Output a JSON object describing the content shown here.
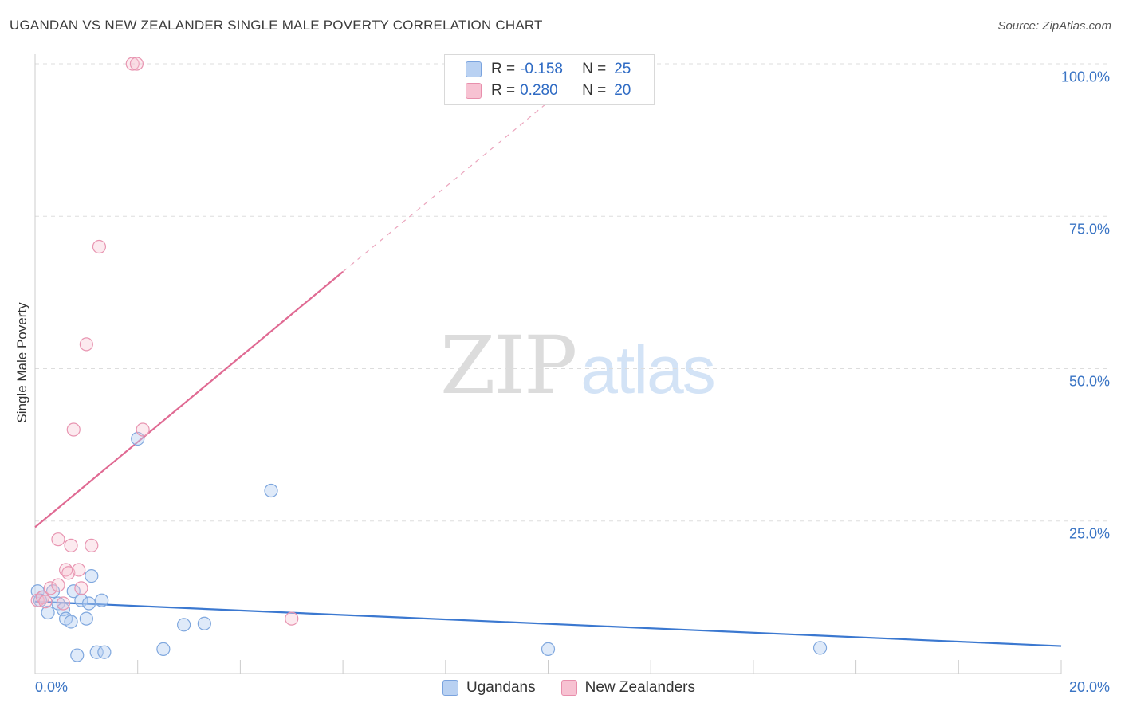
{
  "title": "UGANDAN VS NEW ZEALANDER SINGLE MALE POVERTY CORRELATION CHART",
  "source": "Source: ZipAtlas.com",
  "watermark": {
    "zip": "ZIP",
    "atlas": "atlas"
  },
  "legend_top": {
    "rows": [
      {
        "r_label": "R =",
        "r_value": "-0.158",
        "n_label": "N =",
        "n_value": "25"
      },
      {
        "r_label": "R =",
        "r_value": "0.280",
        "n_label": "N =",
        "n_value": "20"
      }
    ]
  },
  "legend_bottom": {
    "series_0": "Ugandans",
    "series_1": "New Zealanders"
  },
  "chart_data": {
    "type": "scatter",
    "title": "UGANDAN VS NEW ZEALANDER SINGLE MALE POVERTY CORRELATION CHART",
    "xlabel": "",
    "ylabel": "Single Male Poverty",
    "xlim": [
      0,
      20
    ],
    "ylim": [
      0,
      100
    ],
    "x_tick_labels": {
      "left": "0.0%",
      "right": "20.0%"
    },
    "y_tick_labels": [
      "100.0%",
      "75.0%",
      "50.0%",
      "25.0%"
    ],
    "colors": {
      "Ugandans": "#3b78d0",
      "New Zealanders": "#e06a93"
    },
    "series": [
      {
        "name": "Ugandans",
        "points": [
          [
            0.05,
            13.5
          ],
          [
            0.15,
            12.5
          ],
          [
            0.25,
            10.0
          ],
          [
            0.35,
            13.5
          ],
          [
            0.45,
            11.5
          ],
          [
            0.55,
            10.5
          ],
          [
            0.6,
            9.0
          ],
          [
            0.7,
            8.5
          ],
          [
            0.75,
            13.5
          ],
          [
            0.82,
            3.0
          ],
          [
            0.9,
            12.0
          ],
          [
            1.0,
            9.0
          ],
          [
            1.05,
            11.5
          ],
          [
            1.1,
            16.0
          ],
          [
            1.2,
            3.5
          ],
          [
            1.3,
            12.0
          ],
          [
            1.35,
            3.5
          ],
          [
            2.0,
            38.5
          ],
          [
            2.5,
            4.0
          ],
          [
            2.9,
            8.0
          ],
          [
            3.3,
            8.2
          ],
          [
            4.6,
            30.0
          ],
          [
            10.0,
            4.0
          ],
          [
            15.3,
            4.2
          ],
          [
            0.1,
            12.0
          ]
        ],
        "trend": {
          "x": [
            0,
            20
          ],
          "y": [
            11.8,
            4.5
          ]
        }
      },
      {
        "name": "New Zealanders",
        "points": [
          [
            0.05,
            12.0
          ],
          [
            0.15,
            12.5
          ],
          [
            0.3,
            14.0
          ],
          [
            0.45,
            14.5
          ],
          [
            0.45,
            22.0
          ],
          [
            0.55,
            11.5
          ],
          [
            0.6,
            17.0
          ],
          [
            0.65,
            16.5
          ],
          [
            0.7,
            21.0
          ],
          [
            0.75,
            40.0
          ],
          [
            0.85,
            17.0
          ],
          [
            0.9,
            14.0
          ],
          [
            1.0,
            54.0
          ],
          [
            1.1,
            21.0
          ],
          [
            1.25,
            70.0
          ],
          [
            1.9,
            100.0
          ],
          [
            1.98,
            100.0
          ],
          [
            2.1,
            40.0
          ],
          [
            5.0,
            9.0
          ],
          [
            0.2,
            11.8
          ]
        ],
        "trend": {
          "x": [
            0,
            6
          ],
          "y": [
            24.0,
            65.9
          ]
        },
        "trend_dashed": {
          "x": [
            6,
            10.4
          ],
          "y": [
            65.9,
            96.5
          ]
        }
      }
    ]
  }
}
